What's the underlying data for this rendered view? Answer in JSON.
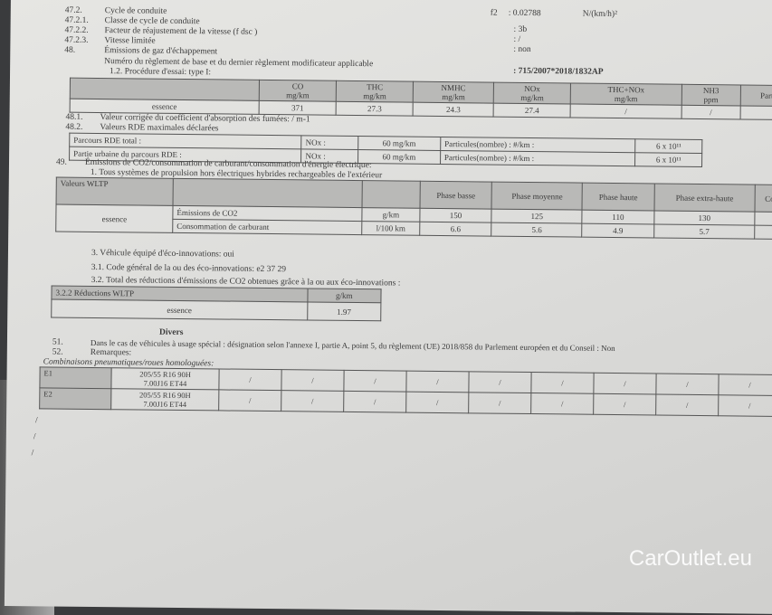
{
  "header_right": {
    "f2_label": "f2",
    "f2_value": ": 0.02788",
    "f2_unit": "N/(km/h)²"
  },
  "items": [
    {
      "num": "47.2.",
      "label": "Cycle de conduite",
      "value": ""
    },
    {
      "num": "47.2.1.",
      "label": "Classe de cycle de conduite",
      "value": ": 3b"
    },
    {
      "num": "47.2.2.",
      "label": "Facteur de réajustement de la vitesse (f dsc )",
      "value": ": /"
    },
    {
      "num": "47.2.3.",
      "label": "Vitesse limitée",
      "value": ": non"
    },
    {
      "num": "48.",
      "label": "Émissions de gaz d'échappement",
      "value": ""
    }
  ],
  "regulation": {
    "label": "Numéro du règlement de base et du dernier règlement modificateur applicable",
    "value": ": 715/2007*2018/1832AP"
  },
  "procedure": "1.2. Procédure d'essai: type I:",
  "emissions_table": {
    "headers": [
      [
        "CO",
        "mg/km"
      ],
      [
        "THC",
        "mg/km"
      ],
      [
        "NMHC",
        "mg/km"
      ],
      [
        "NOx",
        "mg/km"
      ],
      [
        "THC+NOx",
        "mg/km"
      ],
      [
        "NH3",
        "ppm"
      ],
      [
        "Part",
        ""
      ]
    ],
    "row": {
      "fuel": "essence",
      "values": [
        "371",
        "27.3",
        "24.3",
        "27.4",
        "/",
        "/",
        ""
      ]
    }
  },
  "item_48_1": {
    "num": "48.1.",
    "label": "Valeur corrigée du coefficient d'absorption des fumées: / m-1"
  },
  "item_48_2": {
    "num": "48.2.",
    "label": "Valeurs RDE maximales déclarées"
  },
  "rde_rows": [
    {
      "label": "Parcours RDE total :",
      "nox": "NOx :",
      "nox_value": "60 mg/km",
      "pn": "Particules(nombre) : #/km :",
      "pn_value": "6 x 10¹¹"
    },
    {
      "label": "Partie urbaine du parcours RDE   :",
      "nox": "NOx :",
      "nox_value": "60 mg/km",
      "pn": "Particules(nombre) : #/km :",
      "pn_value": "6 x 10¹¹"
    }
  ],
  "item_49": {
    "num": "49.",
    "label": "Émissions de CO2/consommation de carburant/consommation d'énergie électrique:",
    "sub": "1. Tous systèmes de propulsion hors électriques hybrides rechargeables de l'extérieur"
  },
  "wltp_table": {
    "title": "Valeurs WLTP",
    "phases": [
      "Phase basse",
      "Phase moyenne",
      "Phase haute",
      "Phase extra-haute",
      "Con"
    ],
    "fuel": "essence",
    "rows": [
      {
        "label": "Émissions de CO2",
        "unit": "g/km",
        "values": [
          "150",
          "125",
          "110",
          "130",
          ""
        ]
      },
      {
        "label": "Consommation de carburant",
        "unit": "l/100 km",
        "values": [
          "6.6",
          "5.6",
          "4.9",
          "5.7",
          ""
        ]
      }
    ]
  },
  "eco": {
    "line3": "3. Véhicule équipé d'éco-innovations: oui",
    "line31": "3.1. Code général de la ou des éco-innovations: e2 37 29",
    "line32": "3.2. Total des réductions d'émissions de CO2 obtenues grâce à la ou aux éco-innovations :",
    "table_title": "3.2.2 Réductions WLTP",
    "table_unit": "g/km",
    "fuel": "essence",
    "value": "1.97"
  },
  "divers": {
    "title": "Divers",
    "item51_num": "51.",
    "item51": "Dans le cas de véhicules à usage spécial : désignation selon l'annexe I, partie A, point 5, du règlement (UE) 2018/858 du Parlement européen et du Conseil : Non",
    "item52_num": "52.",
    "item52": "Remarques:",
    "tyres_title": "Combinaisons pneumatiques/roues homologuées:",
    "tyres": [
      {
        "id": "E1",
        "tyre": "205/55 R16 90H",
        "wheel": "7.00J16 ET44"
      },
      {
        "id": "E2",
        "tyre": "205/55 R16 90H",
        "wheel": "7.00J16 ET44"
      }
    ],
    "slash": "/"
  },
  "watermark": "CarOutlet.eu"
}
